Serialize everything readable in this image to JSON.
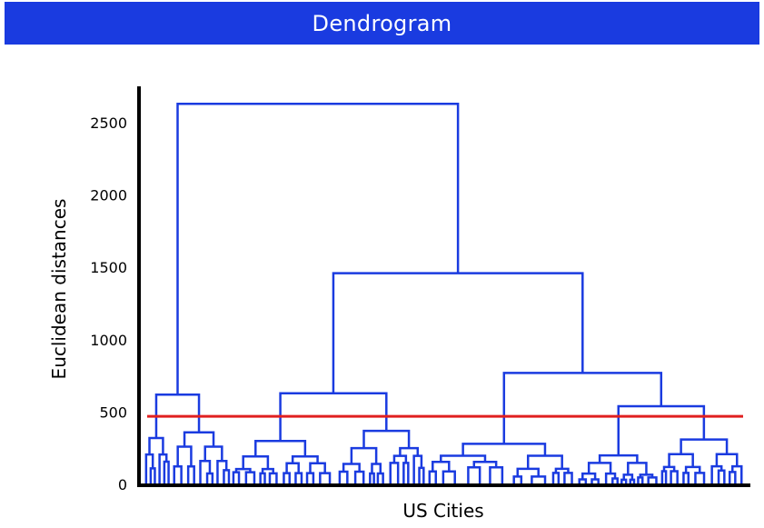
{
  "header": {
    "title": "Dendrogram"
  },
  "chart_data": {
    "type": "dendrogram",
    "title": "Dendrogram",
    "xlabel": "US Cities",
    "ylabel": "Euclidean distances",
    "ylim": [
      0,
      2500
    ],
    "yticks": [
      0,
      500,
      1000,
      1500,
      2000,
      2500
    ],
    "ytick_labels": [
      "0",
      "500",
      "1000",
      "1500",
      "2000",
      "2500"
    ],
    "leaf_count": 100,
    "threshold": 470,
    "colors": {
      "tree": "#1a3be0",
      "threshold": "#e02020",
      "axis": "#000000",
      "title_bg": "#1a3be0"
    },
    "merges": [
      {
        "left": 0.08,
        "right": 0.505,
        "height": 2630
      },
      {
        "left": 0.32,
        "right": 0.69,
        "height": 1460
      },
      {
        "left": 0.575,
        "right": 0.805,
        "height": 770
      },
      {
        "left": 0.08,
        "right": 0.125,
        "height": 620
      },
      {
        "left": 0.25,
        "right": 0.39,
        "height": 630
      },
      {
        "left": 0.545,
        "right": 0.88,
        "height": 540
      },
      {
        "left": 0.02,
        "right": 0.1,
        "height": 370
      },
      {
        "left": 0.205,
        "right": 0.42,
        "height": 370
      },
      {
        "left": 0.48,
        "right": 0.64,
        "height": 280
      },
      {
        "left": 0.83,
        "right": 0.935,
        "height": 310
      }
    ]
  }
}
